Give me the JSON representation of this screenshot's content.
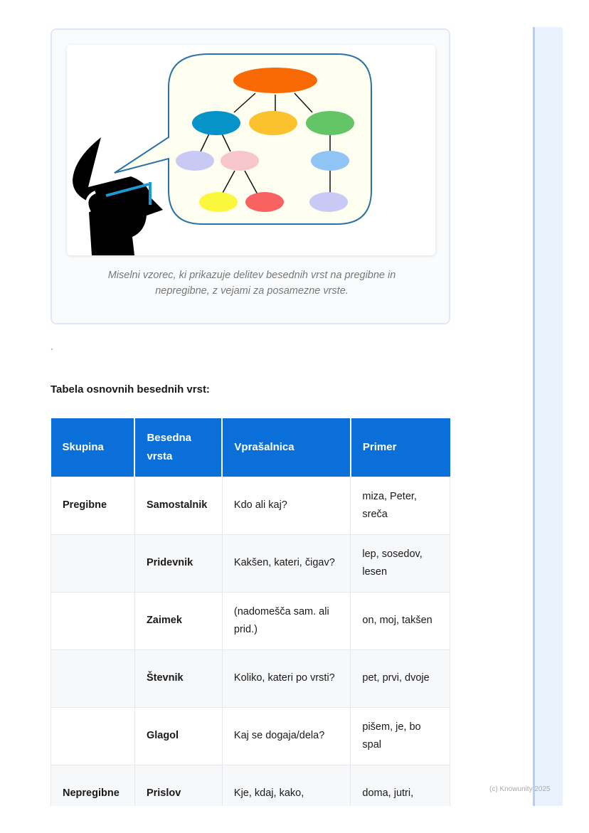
{
  "figure": {
    "caption": "Miselni vzorec, ki prikazuje delitev besednih vrst na pregibne in nepregibne, z vejami za posamezne vrste.",
    "node_colors": [
      "#f96a06",
      "#0593c8",
      "#fbc22e",
      "#63c565",
      "#c9c9f5",
      "#f7c6cc",
      "#8fc4f5",
      "#fbf73c",
      "#f86362",
      "#c9c9f5"
    ]
  },
  "stray_mark": "`",
  "table_heading": "Tabela osnovnih besednih vrst:",
  "table": {
    "headers": [
      "Skupina",
      "Besedna vrsta",
      "Vprašalnica",
      "Primer"
    ],
    "rows": [
      [
        "Pregibne",
        "Samostalnik",
        "Kdo ali kaj?",
        "miza, Peter, sreča"
      ],
      [
        "",
        "Pridevnik",
        "Kakšen, kateri, čigav?",
        "lep, sosedov, lesen"
      ],
      [
        "",
        "Zaimek",
        "(nadomešča sam. ali prid.)",
        "on, moj, takšen"
      ],
      [
        "",
        "Števnik",
        "Koliko, kateri po vrsti?",
        "pet, prvi, dvoje"
      ],
      [
        "",
        "Glagol",
        "Kaj se dogaja/dela?",
        "pišem, je, bo spal"
      ],
      [
        "Nepregibne",
        "Prislov",
        "Kje, kdaj, kako,",
        "doma, jutri,"
      ]
    ]
  },
  "footer": "(c) Knowunity 2025",
  "colors": {
    "header": "#0a6fd8",
    "sidebar": "#eaf2fd"
  }
}
